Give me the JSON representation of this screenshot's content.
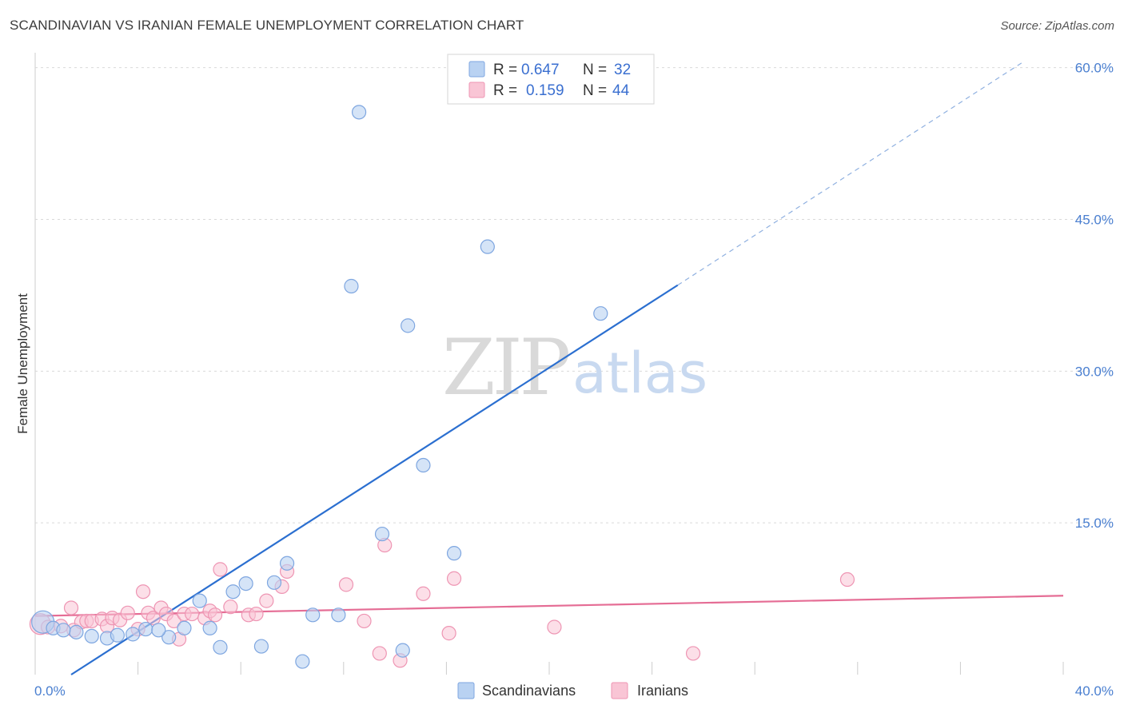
{
  "title": "SCANDINAVIAN VS IRANIAN FEMALE UNEMPLOYMENT CORRELATION CHART",
  "source": "Source: ZipAtlas.com",
  "watermark": {
    "zip": "ZIP",
    "atlas": "atlas"
  },
  "colors": {
    "blue_fill": "#b9d2f2",
    "blue_stroke": "#7ea6e0",
    "blue_line": "#2b6fd0",
    "pink_fill": "#f9c5d5",
    "pink_stroke": "#ee95b3",
    "pink_line": "#e56d95",
    "grid": "#d9d9d9",
    "axis_text": "#4a7fd0"
  },
  "legend": {
    "rows": [
      {
        "r_label": "R =",
        "r_value": "0.647",
        "n_label": "N =",
        "n_value": "32"
      },
      {
        "r_label": "R =",
        "r_value": "0.159",
        "n_label": "N =",
        "n_value": "44"
      }
    ]
  },
  "chart_data": {
    "type": "scatter",
    "ylabel": "Female Unemployment",
    "x_range": [
      0,
      40
    ],
    "y_range": [
      0,
      61
    ],
    "x_tick_labels": {
      "start": "0.0%",
      "end": "40.0%"
    },
    "y_ticks": [
      {
        "value": 15,
        "label": "15.0%"
      },
      {
        "value": 30,
        "label": "30.0%"
      },
      {
        "value": 45,
        "label": "45.0%"
      },
      {
        "value": 60,
        "label": "60.0%"
      }
    ],
    "series": [
      {
        "name": "Scandinavians",
        "color": "blue",
        "points": [
          [
            0.3,
            5.2
          ],
          [
            0.7,
            4.6
          ],
          [
            1.6,
            4.2
          ],
          [
            2.2,
            3.8
          ],
          [
            2.8,
            3.6
          ],
          [
            3.2,
            3.9
          ],
          [
            3.8,
            4.0
          ],
          [
            4.3,
            4.5
          ],
          [
            5.2,
            3.7
          ],
          [
            5.8,
            4.6
          ],
          [
            6.4,
            7.3
          ],
          [
            6.8,
            4.6
          ],
          [
            7.2,
            2.7
          ],
          [
            7.7,
            8.2
          ],
          [
            8.2,
            9.0
          ],
          [
            8.8,
            2.8
          ],
          [
            9.3,
            9.1
          ],
          [
            9.8,
            11.0
          ],
          [
            10.4,
            1.3
          ],
          [
            10.8,
            5.9
          ],
          [
            11.8,
            5.9
          ],
          [
            12.3,
            38.4
          ],
          [
            12.6,
            55.6
          ],
          [
            13.5,
            13.9
          ],
          [
            14.3,
            2.4
          ],
          [
            14.5,
            34.5
          ],
          [
            15.1,
            20.7
          ],
          [
            16.3,
            12.0
          ],
          [
            17.6,
            42.3
          ],
          [
            22.0,
            35.7
          ],
          [
            4.8,
            4.4
          ],
          [
            1.1,
            4.4
          ]
        ],
        "trend": {
          "x0": 1.4,
          "y0": 0.0,
          "x1": 25.0,
          "y1": 38.5,
          "dash_x1": 38.4,
          "dash_y1": 60.5
        }
      },
      {
        "name": "Iranians",
        "color": "pink",
        "points": [
          [
            0.2,
            5.0
          ],
          [
            0.5,
            4.7
          ],
          [
            1.0,
            4.8
          ],
          [
            1.5,
            4.4
          ],
          [
            1.4,
            6.6
          ],
          [
            1.8,
            5.2
          ],
          [
            2.0,
            5.3
          ],
          [
            2.2,
            5.3
          ],
          [
            2.6,
            5.5
          ],
          [
            2.8,
            4.8
          ],
          [
            3.0,
            5.6
          ],
          [
            3.3,
            5.4
          ],
          [
            3.6,
            6.1
          ],
          [
            4.0,
            4.5
          ],
          [
            4.2,
            8.2
          ],
          [
            4.4,
            6.1
          ],
          [
            4.6,
            5.6
          ],
          [
            4.9,
            6.6
          ],
          [
            5.1,
            6.0
          ],
          [
            5.4,
            5.3
          ],
          [
            5.6,
            3.5
          ],
          [
            5.8,
            6.0
          ],
          [
            6.1,
            6.0
          ],
          [
            6.6,
            5.6
          ],
          [
            6.8,
            6.3
          ],
          [
            7.0,
            5.9
          ],
          [
            7.2,
            10.4
          ],
          [
            7.6,
            6.7
          ],
          [
            8.3,
            5.9
          ],
          [
            8.6,
            6.0
          ],
          [
            9.0,
            7.3
          ],
          [
            9.6,
            8.7
          ],
          [
            9.8,
            10.2
          ],
          [
            12.1,
            8.9
          ],
          [
            12.8,
            5.3
          ],
          [
            13.4,
            2.1
          ],
          [
            13.6,
            12.8
          ],
          [
            14.2,
            1.4
          ],
          [
            15.1,
            8.0
          ],
          [
            16.1,
            4.1
          ],
          [
            16.3,
            9.5
          ],
          [
            20.2,
            4.7
          ],
          [
            25.6,
            2.1
          ],
          [
            31.6,
            9.4
          ]
        ],
        "trend": {
          "x0": 0.0,
          "y0": 5.8,
          "x1": 40.0,
          "y1": 7.8
        }
      }
    ]
  }
}
